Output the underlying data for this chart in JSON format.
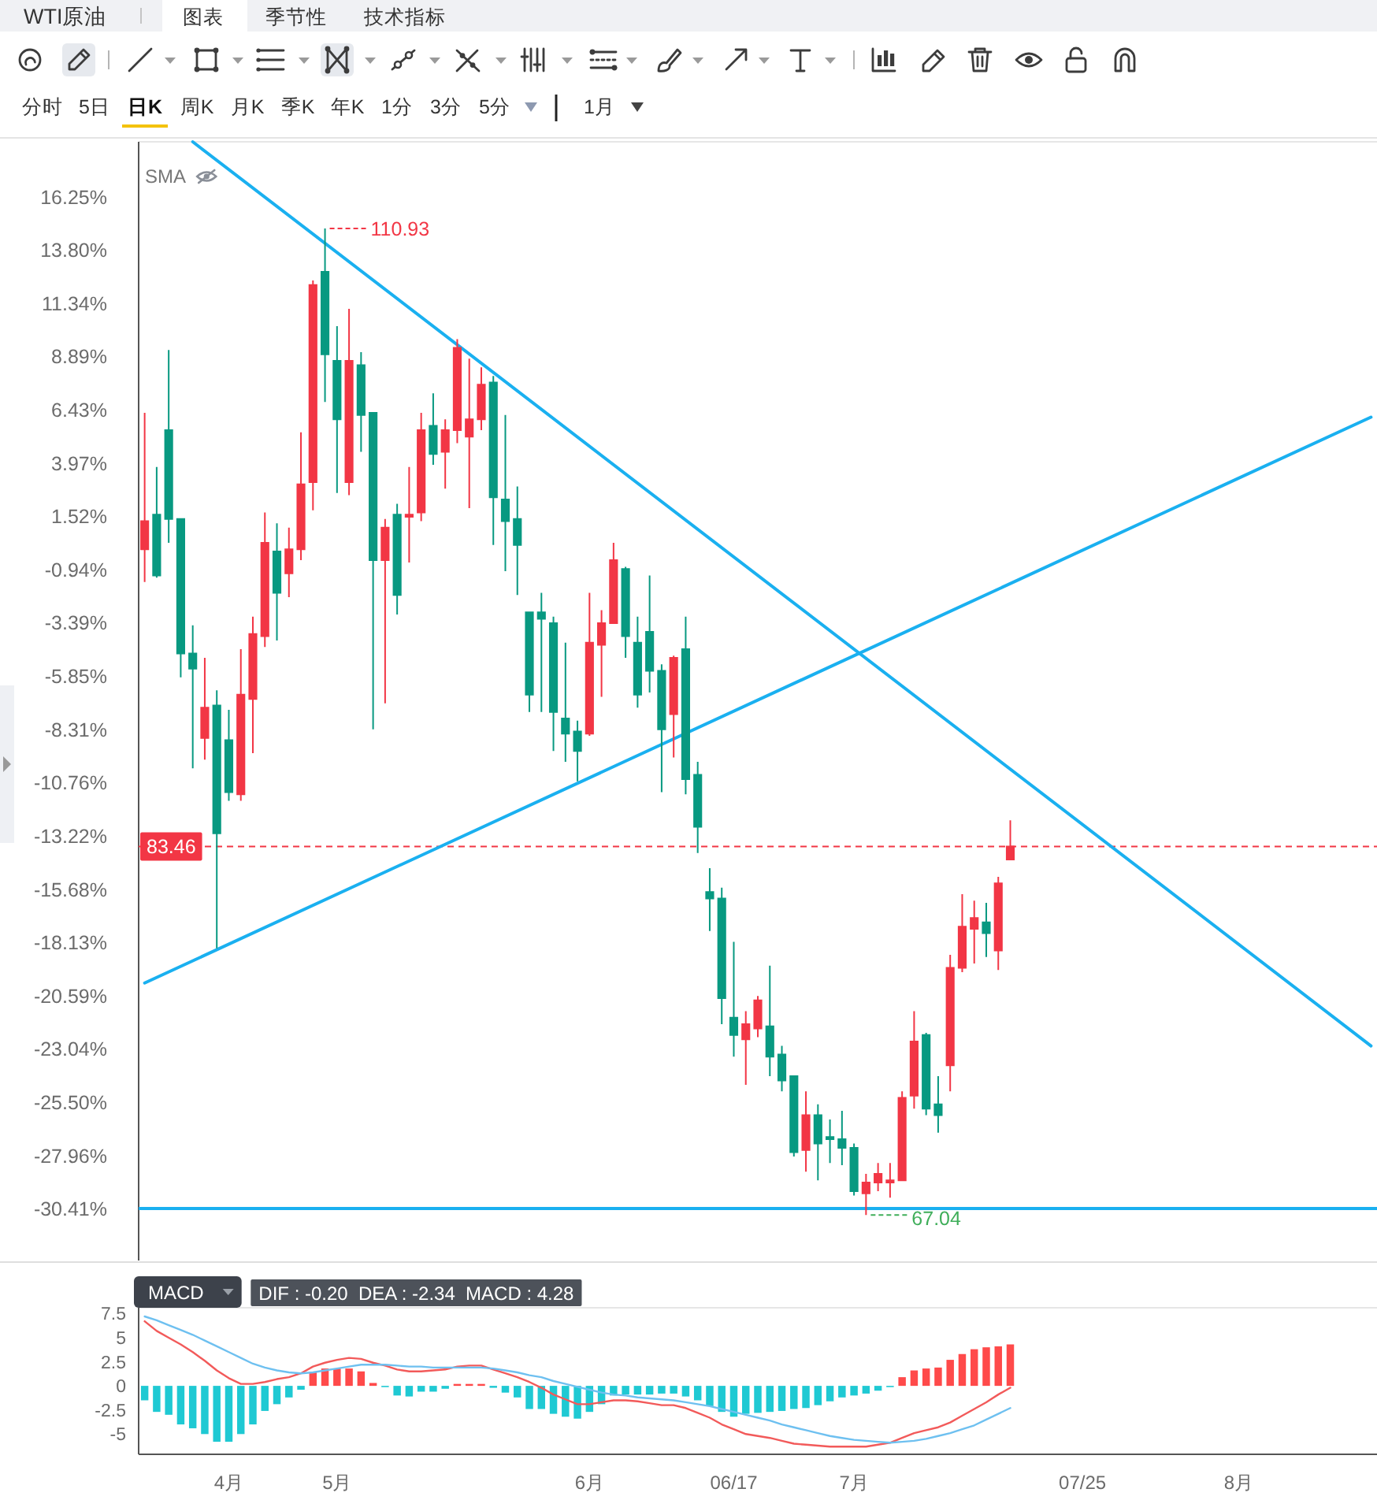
{
  "chart_data": [
    {
      "type": "other",
      "title": "WTI原油",
      "annotations": [
        "图表",
        "季节性",
        "技术指标",
        "分时",
        "5日",
        "日K",
        "周K",
        "月K",
        "季K",
        "年K",
        "1分",
        "3分",
        "5分",
        "1月"
      ]
    },
    {
      "type": "candlestick",
      "categories": [
        null,
        null,
        null,
        null,
        null,
        null,
        null,
        null,
        null,
        null,
        null,
        null,
        null,
        null,
        null,
        null,
        null,
        null,
        null,
        null,
        null,
        null,
        null,
        null,
        null,
        null,
        null,
        null,
        null,
        null,
        null,
        null,
        null,
        null,
        null,
        null,
        null,
        null,
        null,
        null,
        null,
        null,
        null,
        null,
        null,
        null,
        null,
        null,
        null,
        null,
        null,
        null,
        null,
        null,
        null,
        null,
        null,
        null,
        null,
        null,
        null,
        null,
        null,
        null,
        null,
        null,
        null,
        null,
        null,
        null,
        null,
        null,
        null,
        null,
        null,
        null,
        null,
        null,
        null,
        null,
        null,
        null,
        null,
        null,
        null,
        null,
        null,
        null,
        null,
        null,
        null,
        null,
        null,
        null,
        null,
        null,
        null,
        null,
        null,
        null,
        null,
        null,
        null
      ],
      "ohlc": [
        [
          0.0,
          6.3,
          -1.5,
          1.3
        ],
        [
          1.6,
          3.8,
          -1.3,
          -1.2
        ],
        [
          5.5,
          9.2,
          0.3,
          1.4
        ],
        [
          1.4,
          1.4,
          -5.9,
          -4.8
        ],
        [
          -4.8,
          -3.5,
          -10.1,
          -5.5
        ],
        [
          -8.7,
          -5.0,
          -9.7,
          -7.3
        ],
        [
          -7.2,
          -6.5,
          -18.4,
          -13.1
        ],
        [
          -8.8,
          -7.4,
          -11.6,
          -11.2
        ],
        [
          -11.3,
          -4.6,
          -11.6,
          -6.7
        ],
        [
          -6.9,
          -3.1,
          -9.4,
          -3.9
        ],
        [
          -4.0,
          1.7,
          -4.5,
          0.3
        ],
        [
          -0.1,
          1.2,
          -4.2,
          -2.0
        ],
        [
          -1.1,
          1.0,
          -2.2,
          0.0
        ],
        [
          0.0,
          5.4,
          -0.5,
          3.0
        ],
        [
          3.1,
          12.4,
          1.8,
          12.2
        ],
        [
          12.8,
          14.8,
          6.8,
          9.0
        ],
        [
          8.7,
          10.3,
          2.6,
          6.0
        ],
        [
          3.1,
          11.1,
          2.5,
          8.7
        ],
        [
          8.5,
          9.1,
          4.5,
          6.2
        ],
        [
          6.3,
          6.3,
          -8.3,
          -0.5
        ],
        [
          -0.5,
          1.4,
          -7.1,
          1.0
        ],
        [
          1.6,
          2.1,
          -3.0,
          -2.1
        ],
        [
          1.5,
          3.8,
          -0.6,
          1.6
        ],
        [
          1.7,
          6.3,
          1.3,
          5.5
        ],
        [
          5.7,
          7.2,
          3.9,
          4.4
        ],
        [
          4.5,
          6.0,
          2.8,
          5.5
        ],
        [
          5.5,
          9.7,
          4.9,
          9.3
        ],
        [
          5.2,
          8.8,
          1.9,
          6.0
        ],
        [
          6.0,
          8.4,
          5.5,
          7.6
        ],
        [
          7.7,
          8.0,
          0.2,
          2.4
        ],
        [
          2.3,
          6.2,
          -1.0,
          1.3
        ],
        [
          1.4,
          2.9,
          -2.1,
          0.2
        ],
        [
          -2.9,
          -2.9,
          -7.5,
          -6.7
        ],
        [
          -2.9,
          -2.0,
          -7.5,
          -3.2
        ],
        [
          -3.4,
          -3.1,
          -9.3,
          -7.5
        ],
        [
          -7.8,
          -4.3,
          -9.8,
          -8.5
        ],
        [
          -8.4,
          -7.9,
          -10.7,
          -9.3
        ],
        [
          -8.5,
          -2.0,
          -8.6,
          -4.3
        ],
        [
          -4.4,
          -2.8,
          -6.8,
          -3.4
        ],
        [
          -3.4,
          0.3,
          -3.4,
          -0.5
        ],
        [
          -0.9,
          -0.8,
          -5.0,
          -4.0
        ],
        [
          -4.3,
          -3.1,
          -7.3,
          -6.7
        ],
        [
          -3.8,
          -1.2,
          -6.6,
          -5.6
        ],
        [
          -5.6,
          -5.3,
          -11.2,
          -8.3
        ],
        [
          -7.6,
          -4.9,
          -9.6,
          -5.0
        ],
        [
          -4.6,
          -3.1,
          -11.3,
          -10.6
        ],
        [
          -10.4,
          -9.8,
          -14.0,
          -12.8
        ],
        [
          -15.8,
          -14.7,
          -17.6,
          -16.1
        ],
        [
          -16.1,
          -15.6,
          -21.9,
          -20.7
        ],
        [
          -21.6,
          -18.1,
          -23.4,
          -22.4
        ],
        [
          -22.6,
          -21.3,
          -24.7,
          -21.9
        ],
        [
          -22.1,
          -20.6,
          -22.5,
          -20.8
        ],
        [
          -22.0,
          -19.2,
          -24.3,
          -23.4
        ],
        [
          -23.3,
          -22.9,
          -25.0,
          -24.5
        ],
        [
          -24.3,
          -24.3,
          -28.0,
          -27.8
        ],
        [
          -27.7,
          -25.0,
          -28.7,
          -26.1
        ],
        [
          -26.1,
          -25.6,
          -29.1,
          -27.4
        ],
        [
          -27.1,
          -26.3,
          -28.3,
          -27.2
        ],
        [
          -27.2,
          -25.9,
          -28.4,
          -27.6
        ],
        [
          -27.6,
          -27.4,
          -29.8,
          -29.6
        ],
        [
          -29.7,
          -28.8,
          -30.7,
          -29.2
        ],
        [
          -29.2,
          -28.3,
          -29.6,
          -28.8
        ],
        [
          -29.2,
          -28.3,
          -29.9,
          -29.1
        ],
        [
          -29.1,
          -25.0,
          -29.1,
          -25.3
        ],
        [
          -25.2,
          -21.3,
          -25.8,
          -22.7
        ],
        [
          -22.4,
          -22.3,
          -26.1,
          -25.8
        ],
        [
          -25.6,
          -24.3,
          -26.9,
          -26.1
        ],
        [
          -23.8,
          -18.7,
          -25.0,
          -19.3
        ],
        [
          -19.3,
          -15.9,
          -19.5,
          -17.4
        ],
        [
          -17.5,
          -16.2,
          -19.1,
          -17.0
        ],
        [
          -17.2,
          -16.3,
          -18.8,
          -17.7
        ],
        [
          -18.5,
          -15.1,
          -19.4,
          -15.4
        ],
        [
          -14.3,
          -12.5,
          -14.3,
          -13.7
        ],
        null,
        null,
        null,
        null,
        null,
        null,
        null,
        null,
        null,
        null,
        null,
        null,
        null,
        null,
        null,
        null,
        null,
        null,
        null,
        null,
        null,
        null,
        null,
        null,
        null,
        null,
        null,
        null,
        null,
        null
      ],
      "colors": [
        "#f23645",
        "#089981",
        "#089981",
        "#089981",
        "#089981",
        "#f23645",
        "#089981",
        "#089981",
        "#f23645",
        "#f23645",
        "#f23645",
        "#089981",
        "#f23645",
        "#f23645",
        "#f23645",
        "#089981",
        "#089981",
        "#f23645",
        "#089981",
        "#089981",
        "#f23645",
        "#089981",
        "#f23645",
        "#f23645",
        "#089981",
        "#f23645",
        "#f23645",
        "#f23645",
        "#f23645",
        "#089981",
        "#089981",
        "#089981",
        "#089981",
        "#089981",
        "#089981",
        "#089981",
        "#089981",
        "#f23645",
        "#f23645",
        "#f23645",
        "#089981",
        "#089981",
        "#089981",
        "#089981",
        "#f23645",
        "#089981",
        "#089981",
        "#089981",
        "#089981",
        "#089981",
        "#f23645",
        "#f23645",
        "#089981",
        "#089981",
        "#089981",
        "#f23645",
        "#089981",
        "#089981",
        "#089981",
        "#089981",
        "#f23645",
        "#f23645",
        "#f23645",
        "#f23645",
        "#f23645",
        "#089981",
        "#089981",
        "#f23645",
        "#f23645",
        "#f23645",
        "#089981",
        "#f23645",
        "#f23645",
        null,
        null,
        null,
        null,
        null,
        null,
        null,
        null,
        null,
        null,
        null,
        null,
        null,
        null,
        null,
        null,
        null,
        null,
        null,
        null,
        null,
        null,
        null,
        null,
        null,
        null,
        null,
        null,
        null,
        null
      ],
      "series": [
        {
          "type": "line",
          "color": "#1ab0f0",
          "values": [
            null,
            null,
            null,
            null,
            18.8,
            null,
            null,
            null,
            null,
            null,
            null,
            null,
            null,
            null,
            null,
            null,
            null,
            null,
            null,
            null,
            null,
            null,
            null,
            null,
            null,
            null,
            null,
            null,
            null,
            null,
            null,
            null,
            null,
            null,
            null,
            null,
            null,
            null,
            null,
            null,
            null,
            null,
            null,
            null,
            null,
            null,
            null,
            null,
            null,
            null,
            null,
            null,
            null,
            null,
            null,
            null,
            null,
            null,
            null,
            null,
            null,
            null,
            null,
            null,
            null,
            null,
            null,
            null,
            null,
            null,
            null,
            null,
            null,
            null,
            null,
            null,
            null,
            null,
            null,
            null,
            null,
            null,
            null,
            null,
            null,
            null,
            null,
            null,
            null,
            null,
            null,
            null,
            null,
            null,
            null,
            null,
            null,
            null,
            null,
            null,
            null,
            null,
            -22.9
          ]
        },
        {
          "type": "line",
          "color": "#1ab0f0",
          "values": [
            -20.0,
            null,
            null,
            null,
            null,
            null,
            null,
            null,
            null,
            null,
            null,
            null,
            null,
            null,
            null,
            null,
            null,
            null,
            null,
            null,
            null,
            null,
            null,
            null,
            null,
            null,
            null,
            null,
            null,
            null,
            null,
            null,
            null,
            null,
            null,
            null,
            null,
            null,
            null,
            null,
            null,
            null,
            null,
            null,
            null,
            null,
            null,
            null,
            null,
            null,
            null,
            null,
            null,
            null,
            null,
            null,
            null,
            null,
            null,
            null,
            null,
            null,
            null,
            null,
            null,
            null,
            null,
            null,
            null,
            null,
            null,
            null,
            null,
            null,
            null,
            null,
            null,
            null,
            null,
            null,
            null,
            null,
            null,
            null,
            null,
            null,
            null,
            null,
            null,
            null,
            null,
            null,
            null,
            null,
            null,
            null,
            null,
            null,
            null,
            null,
            null,
            null,
            6.1
          ]
        }
      ],
      "ylim": [
        -32.8,
        18.8
      ],
      "yticks": [
        {
          "value": 16.25,
          "label": "16.25%"
        },
        {
          "value": 13.8,
          "label": "13.80%"
        },
        {
          "value": 11.34,
          "label": "11.34%"
        },
        {
          "value": 8.89,
          "label": "8.89%"
        },
        {
          "value": 6.43,
          "label": "6.43%"
        },
        {
          "value": 3.97,
          "label": "3.97%"
        },
        {
          "value": 1.52,
          "label": "1.52%"
        },
        {
          "value": -0.94,
          "label": "-0.94%"
        },
        {
          "value": -3.39,
          "label": "-3.39%"
        },
        {
          "value": -5.85,
          "label": "-5.85%"
        },
        {
          "value": -8.31,
          "label": "-8.31%"
        },
        {
          "value": -10.76,
          "label": "-10.76%"
        },
        {
          "value": -13.22,
          "label": "-13.22%"
        },
        {
          "value": -15.68,
          "label": "-15.68%"
        },
        {
          "value": -18.13,
          "label": "-18.13%"
        },
        {
          "value": -20.59,
          "label": "-20.59%"
        },
        {
          "value": -23.04,
          "label": "-23.04%"
        },
        {
          "value": -25.5,
          "label": "-25.50%"
        },
        {
          "value": -27.96,
          "label": "-27.96%"
        },
        {
          "value": -30.41,
          "label": "-30.41%"
        }
      ],
      "tick_labels": "y",
      "ref_lines": [
        {
          "axis": "y",
          "value": -13.7,
          "color": "#f23645",
          "line_style": "dashed"
        },
        {
          "axis": "y",
          "value": -30.4,
          "color": "#1ab0f0"
        }
      ],
      "annotations": [
        "SMA",
        "110.93",
        "67.04",
        {
          "text": "83.46",
          "y": -13.7
        }
      ]
    },
    {
      "type": "bar",
      "title": "MACD",
      "subtitle": "DIF : -0.20  DEA : -2.34  MACD : 4.28",
      "categories": [
        null,
        null,
        null,
        null,
        null,
        null,
        null,
        "4月",
        null,
        null,
        null,
        null,
        null,
        null,
        null,
        null,
        "5月",
        null,
        null,
        null,
        null,
        null,
        null,
        null,
        null,
        null,
        null,
        null,
        null,
        null,
        null,
        null,
        null,
        null,
        null,
        null,
        null,
        "6月",
        null,
        null,
        null,
        null,
        null,
        null,
        null,
        null,
        null,
        null,
        null,
        "06/17",
        null,
        null,
        null,
        null,
        null,
        null,
        null,
        null,
        null,
        "7月",
        null,
        null,
        null,
        null,
        null,
        null,
        null,
        null,
        null,
        null,
        null,
        null,
        null,
        null,
        null,
        null,
        null,
        null,
        "07/25",
        null,
        null,
        null,
        null,
        null,
        null,
        null,
        null,
        null,
        null,
        null,
        null,
        "8月",
        null,
        null,
        null,
        null,
        null,
        null,
        null,
        null,
        null,
        null,
        null
      ],
      "series": [
        {
          "type": "bar",
          "values": [
            -1.5,
            -2.7,
            -3.0,
            -4.0,
            -4.4,
            -5.0,
            -5.8,
            -5.8,
            -5.0,
            -4.0,
            -2.6,
            -1.9,
            -1.2,
            -0.4,
            1.4,
            1.8,
            1.8,
            1.8,
            1.5,
            0.3,
            -0.1,
            -1.0,
            -1.1,
            -0.6,
            -0.6,
            -0.3,
            0.2,
            0.2,
            0.2,
            -0.2,
            -0.7,
            -1.2,
            -2.4,
            -2.4,
            -2.9,
            -3.2,
            -3.4,
            -2.7,
            -1.9,
            -1.0,
            -0.9,
            -0.9,
            -0.9,
            -0.8,
            -0.8,
            -1.1,
            -1.5,
            -2.1,
            -2.7,
            -3.2,
            -2.9,
            -2.8,
            -2.7,
            -2.6,
            -2.4,
            -2.3,
            -2.0,
            -1.6,
            -1.2,
            -1.0,
            -0.8,
            -0.5,
            -0.1,
            0.9,
            1.6,
            1.8,
            1.9,
            2.7,
            3.3,
            3.8,
            4.0,
            4.1,
            4.3,
            null,
            null,
            null,
            null,
            null,
            null,
            null,
            null,
            null,
            null,
            null,
            null,
            null,
            null,
            null,
            null,
            null,
            null,
            null,
            null,
            null,
            null,
            null,
            null,
            null,
            null,
            null,
            null,
            null,
            null
          ],
          "colors": [
            "#1fc9d3",
            "#1fc9d3",
            "#1fc9d3",
            "#1fc9d3",
            "#1fc9d3",
            "#1fc9d3",
            "#1fc9d3",
            "#1fc9d3",
            "#1fc9d3",
            "#1fc9d3",
            "#1fc9d3",
            "#1fc9d3",
            "#1fc9d3",
            "#1fc9d3",
            "#ff4a4a",
            "#ff4a4a",
            "#ff4a4a",
            "#ff4a4a",
            "#ff4a4a",
            "#ff4a4a",
            "#1fc9d3",
            "#1fc9d3",
            "#1fc9d3",
            "#1fc9d3",
            "#1fc9d3",
            "#1fc9d3",
            "#ff4a4a",
            "#ff4a4a",
            "#ff4a4a",
            "#1fc9d3",
            "#1fc9d3",
            "#1fc9d3",
            "#1fc9d3",
            "#1fc9d3",
            "#1fc9d3",
            "#1fc9d3",
            "#1fc9d3",
            "#1fc9d3",
            "#1fc9d3",
            "#1fc9d3",
            "#1fc9d3",
            "#1fc9d3",
            "#1fc9d3",
            "#1fc9d3",
            "#1fc9d3",
            "#1fc9d3",
            "#1fc9d3",
            "#1fc9d3",
            "#1fc9d3",
            "#1fc9d3",
            "#1fc9d3",
            "#1fc9d3",
            "#1fc9d3",
            "#1fc9d3",
            "#1fc9d3",
            "#1fc9d3",
            "#1fc9d3",
            "#1fc9d3",
            "#1fc9d3",
            "#1fc9d3",
            "#1fc9d3",
            "#1fc9d3",
            "#1fc9d3",
            "#ff4a4a",
            "#ff4a4a",
            "#ff4a4a",
            "#ff4a4a",
            "#ff4a4a",
            "#ff4a4a",
            "#ff4a4a",
            "#ff4a4a",
            "#ff4a4a",
            "#ff4a4a",
            null,
            null,
            null,
            null,
            null,
            null,
            null,
            null,
            null,
            null,
            null,
            null,
            null,
            null,
            null,
            null,
            null,
            null,
            null,
            null,
            null,
            null,
            null,
            null,
            null,
            null,
            null,
            null,
            null,
            null
          ]
        },
        {
          "type": "line",
          "color": "#f25a5a",
          "values": [
            6.7,
            5.7,
            5.0,
            4.3,
            3.5,
            2.6,
            1.6,
            0.8,
            0.2,
            0.2,
            0.4,
            0.7,
            0.9,
            1.3,
            2.0,
            2.4,
            2.7,
            2.9,
            2.8,
            2.4,
            2.1,
            1.7,
            1.5,
            1.5,
            1.6,
            1.7,
            2.0,
            2.1,
            2.1,
            1.7,
            1.3,
            0.9,
            0.4,
            -0.2,
            -0.9,
            -1.4,
            -1.9,
            -1.9,
            -1.7,
            -1.5,
            -1.5,
            -1.6,
            -1.8,
            -2.0,
            -2.0,
            -2.3,
            -2.8,
            -3.3,
            -4.0,
            -4.5,
            -5.0,
            -5.2,
            -5.4,
            -5.7,
            -6.0,
            -6.1,
            -6.2,
            -6.3,
            -6.3,
            -6.3,
            -6.3,
            -6.1,
            -5.9,
            -5.4,
            -4.9,
            -4.6,
            -4.3,
            -3.8,
            -3.1,
            -2.4,
            -1.7,
            -0.9,
            -0.2,
            null,
            null,
            null,
            null,
            null,
            null,
            null,
            null,
            null,
            null,
            null,
            null,
            null,
            null,
            null,
            null,
            null,
            null,
            null,
            null,
            null,
            null,
            null,
            null,
            null,
            null,
            null,
            null,
            null,
            null
          ]
        },
        {
          "type": "line",
          "color": "#6ec0f0",
          "values": [
            7.2,
            6.8,
            6.3,
            5.8,
            5.3,
            4.7,
            4.1,
            3.5,
            2.9,
            2.3,
            1.9,
            1.6,
            1.4,
            1.3,
            1.4,
            1.6,
            1.8,
            2.0,
            2.2,
            2.2,
            2.2,
            2.1,
            2.0,
            2.0,
            1.9,
            1.9,
            1.9,
            1.9,
            1.9,
            1.8,
            1.6,
            1.4,
            1.1,
            0.9,
            0.5,
            0.2,
            -0.1,
            -0.4,
            -0.7,
            -0.9,
            -1.0,
            -1.2,
            -1.3,
            -1.4,
            -1.5,
            -1.7,
            -1.9,
            -2.1,
            -2.4,
            -2.7,
            -3.0,
            -3.3,
            -3.6,
            -4.0,
            -4.3,
            -4.6,
            -4.9,
            -5.2,
            -5.4,
            -5.6,
            -5.7,
            -5.8,
            -5.9,
            -5.8,
            -5.7,
            -5.5,
            -5.2,
            -4.9,
            -4.5,
            -4.1,
            -3.5,
            -2.9,
            -2.3,
            null,
            null,
            null,
            null,
            null,
            null,
            null,
            null,
            null,
            null,
            null,
            null,
            null,
            null,
            null,
            null,
            null,
            null,
            null,
            null,
            null,
            null,
            null,
            null,
            null,
            null,
            null,
            null,
            null,
            null
          ]
        }
      ],
      "ylim": [
        -7.1,
        8.1
      ],
      "yticks": [
        7.5,
        5,
        2.5,
        0,
        -2.5,
        -5
      ]
    }
  ]
}
